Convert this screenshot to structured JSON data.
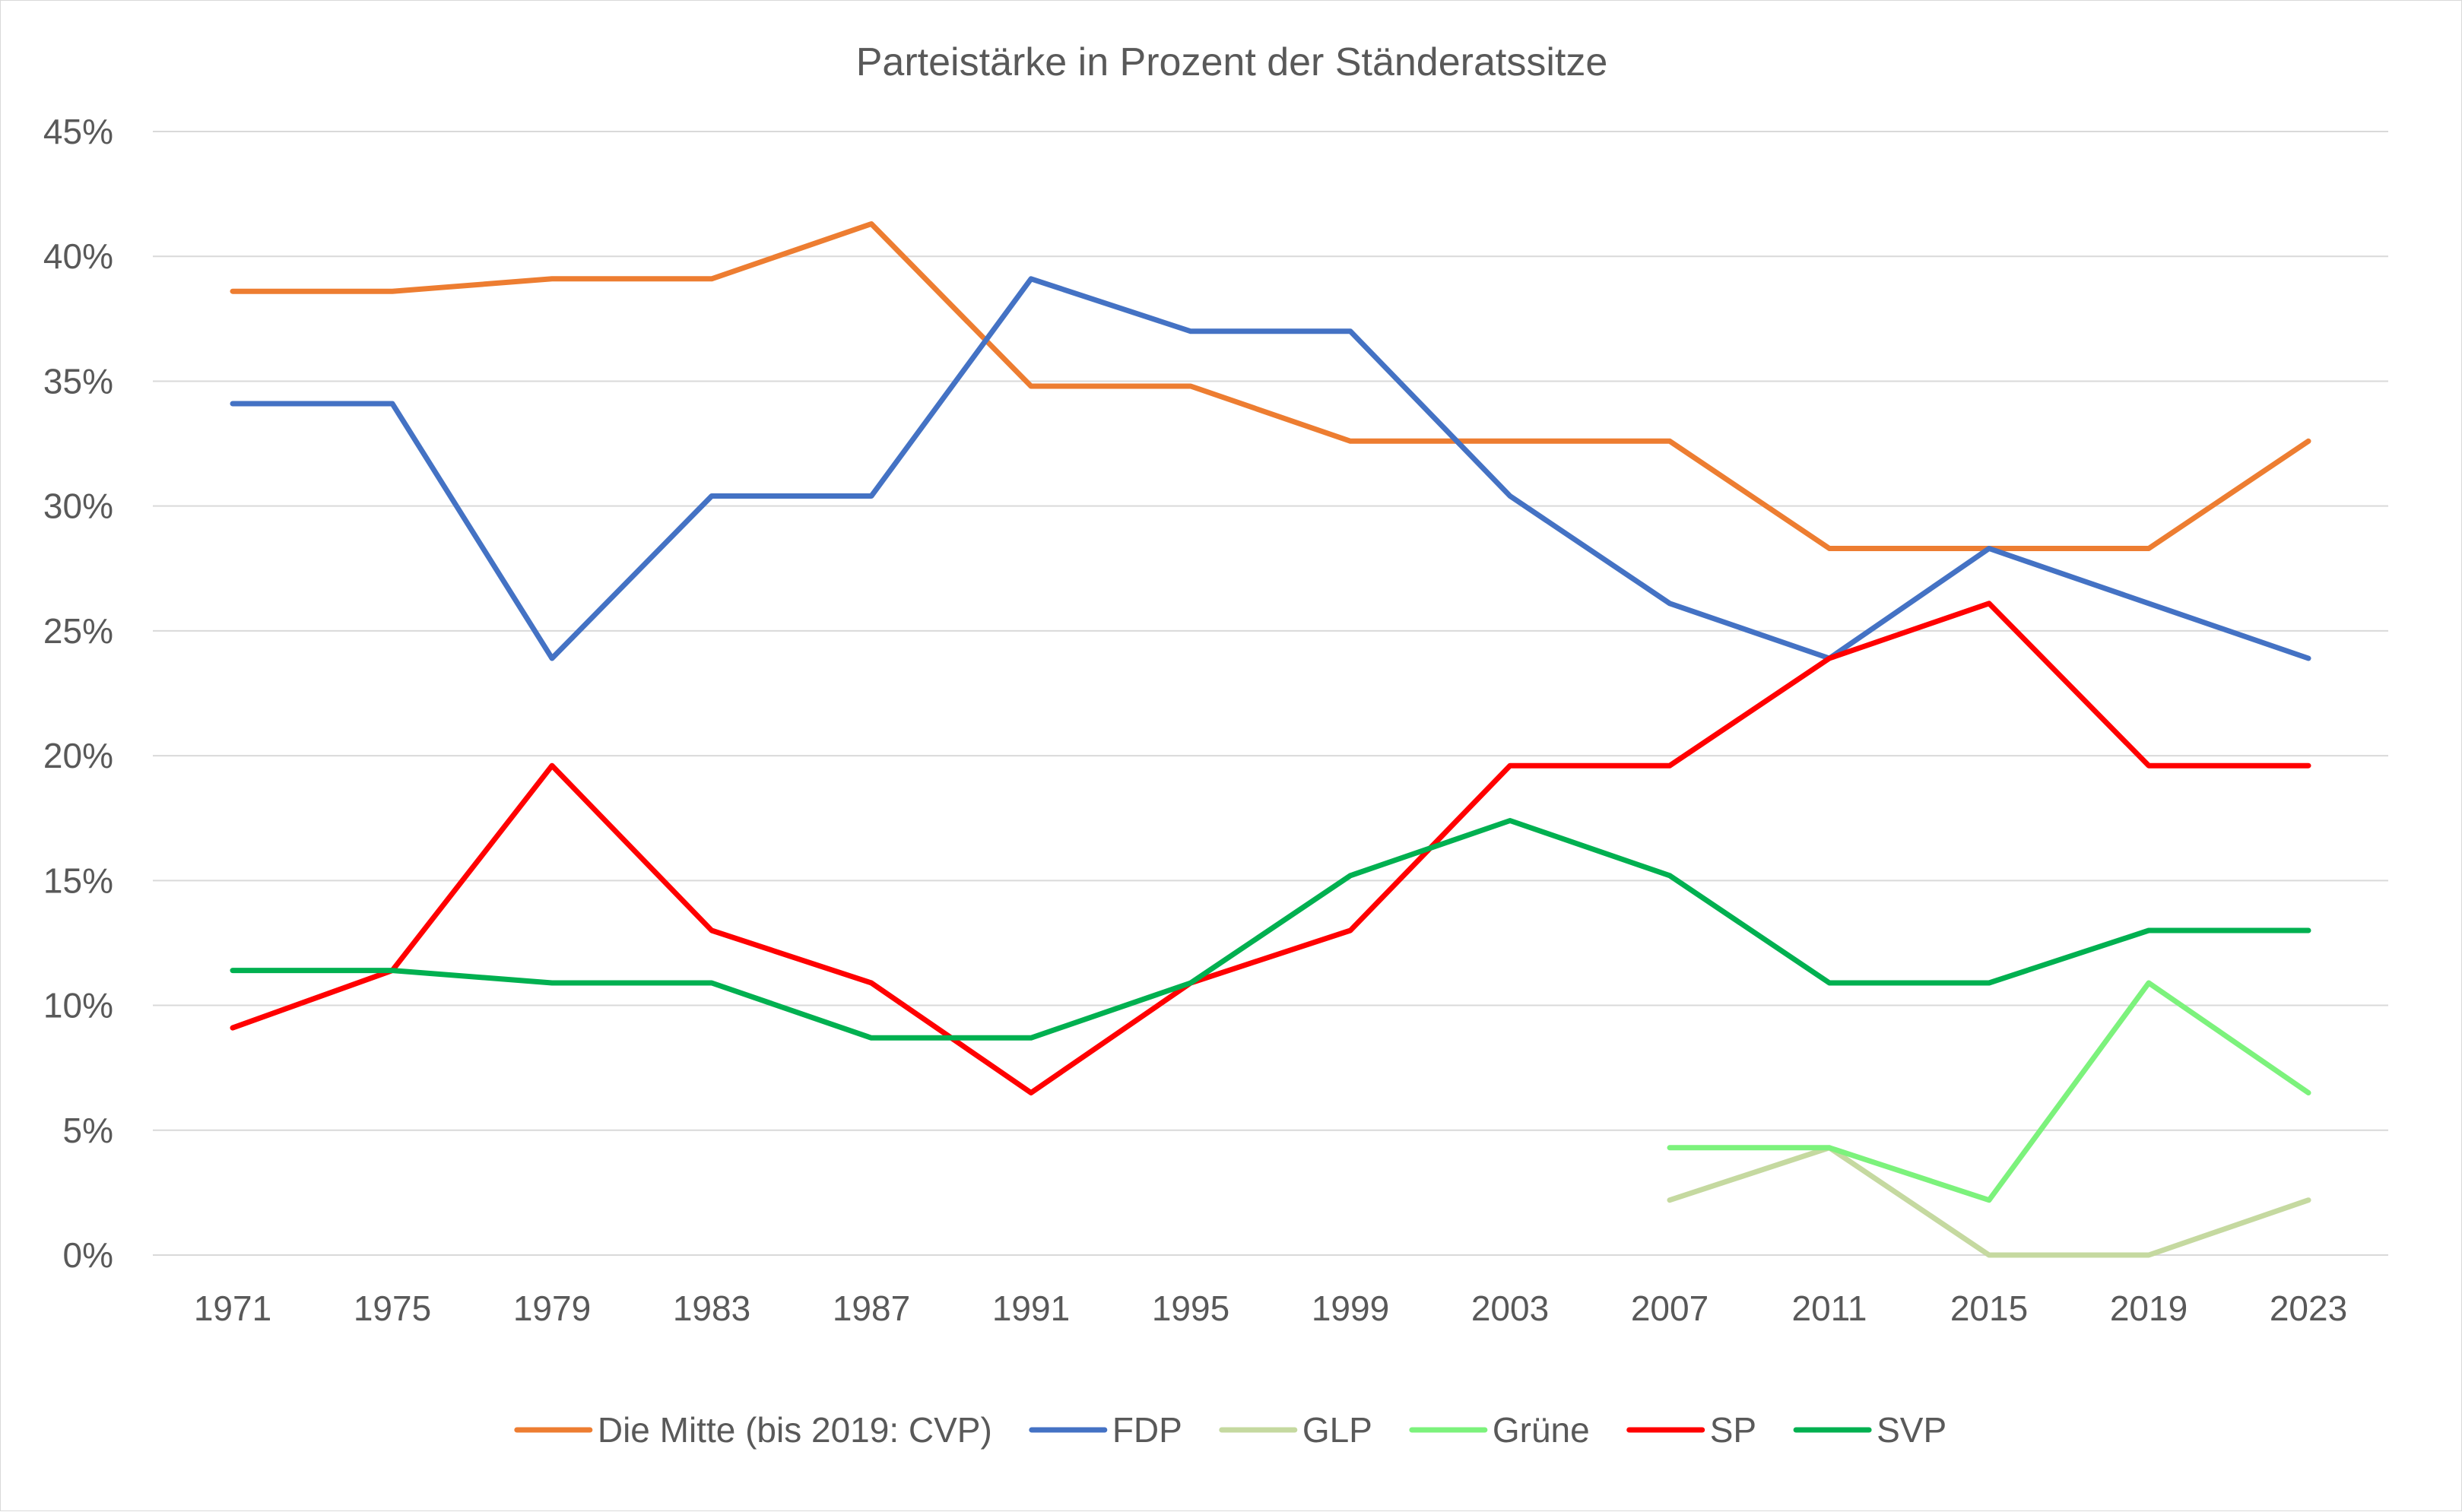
{
  "chart_data": {
    "type": "line",
    "title": "Parteistärke in Prozent der Ständeratssitze",
    "categories": [
      "1971",
      "1975",
      "1979",
      "1983",
      "1987",
      "1991",
      "1995",
      "1999",
      "2003",
      "2007",
      "2011",
      "2015",
      "2019",
      "2023"
    ],
    "y_ticks": [
      "0%",
      "5%",
      "10%",
      "15%",
      "20%",
      "25%",
      "30%",
      "35%",
      "40%",
      "45%"
    ],
    "ylim": [
      0,
      45
    ],
    "grid": true,
    "legend_position": "bottom",
    "series": [
      {
        "name": "Die Mitte (bis 2019: CVP)",
        "color": "#ED7D31",
        "values": [
          38.6,
          38.6,
          39.1,
          39.1,
          41.3,
          34.8,
          34.8,
          32.6,
          32.6,
          32.6,
          28.3,
          28.3,
          28.3,
          32.6
        ]
      },
      {
        "name": "FDP",
        "color": "#4472C4",
        "values": [
          34.1,
          34.1,
          23.9,
          30.4,
          30.4,
          39.1,
          37.0,
          37.0,
          30.4,
          26.1,
          23.9,
          28.3,
          26.1,
          23.9
        ]
      },
      {
        "name": "GLP",
        "color": "#C5D9A0",
        "values": [
          null,
          null,
          null,
          null,
          null,
          null,
          null,
          null,
          null,
          2.2,
          4.3,
          0.0,
          0.0,
          2.2
        ]
      },
      {
        "name": "Grüne",
        "color": "#7CF27C",
        "values": [
          null,
          null,
          null,
          null,
          null,
          null,
          null,
          null,
          null,
          4.3,
          4.3,
          2.2,
          10.9,
          6.5
        ]
      },
      {
        "name": "SP",
        "color": "#FF0000",
        "values": [
          9.1,
          11.4,
          19.6,
          13.0,
          10.9,
          6.5,
          10.9,
          13.0,
          19.6,
          19.6,
          23.9,
          26.1,
          19.6,
          19.6
        ]
      },
      {
        "name": "SVP",
        "color": "#00B050",
        "values": [
          11.4,
          11.4,
          10.9,
          10.9,
          8.7,
          8.7,
          10.9,
          15.2,
          17.4,
          15.2,
          10.9,
          10.9,
          13.0,
          13.0
        ]
      }
    ]
  }
}
